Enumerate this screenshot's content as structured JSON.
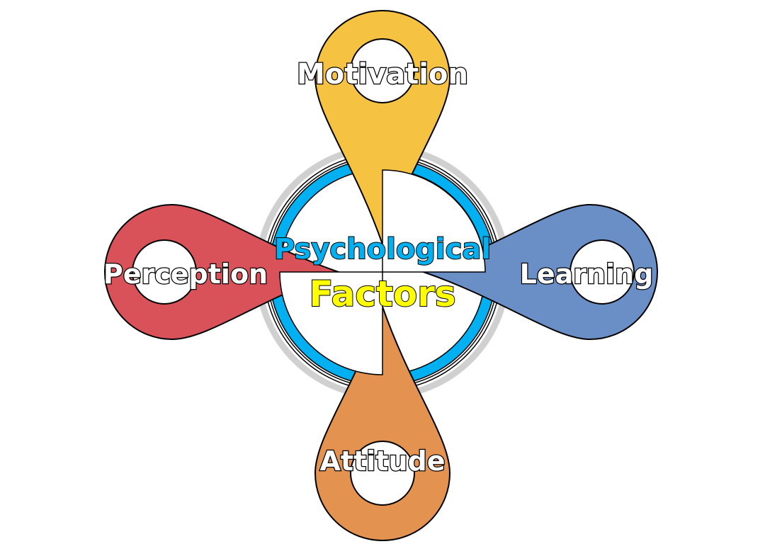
{
  "center": {
    "line1": "Psychological",
    "line2": "Factors",
    "line1_color": "#00b0f0",
    "line2_color": "#ffff00",
    "ring_color": "#00b0f0",
    "halo_color": "#d0d0d0"
  },
  "pins": [
    {
      "id": "motivation",
      "label": "Motivation",
      "color": "#f5c242"
    },
    {
      "id": "learning",
      "label": "Learning",
      "color": "#6a8fc7"
    },
    {
      "id": "attitude",
      "label": "Attitude",
      "color": "#e39250"
    },
    {
      "id": "perception",
      "label": "Perception",
      "color": "#d9525a"
    }
  ]
}
